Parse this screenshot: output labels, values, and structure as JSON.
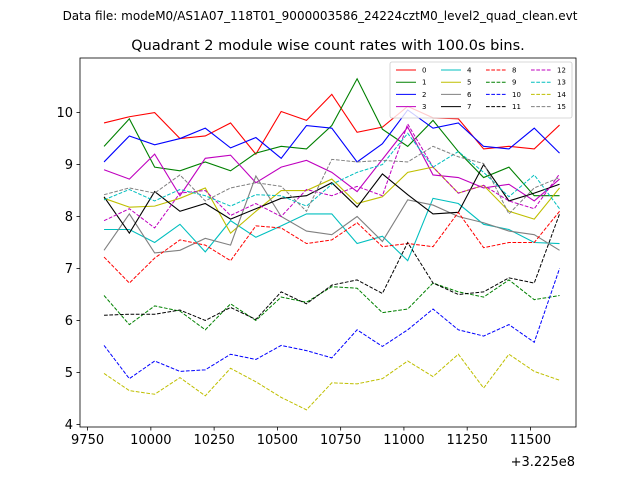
{
  "header": {
    "data_file": "Data file: modeM0/AS1A07_118T01_9000003586_24224cztM0_level2_quad_clean.evt"
  },
  "chart_data": {
    "type": "line",
    "title": "Quadrant 2 module wise count rates with 100.0s bins.",
    "xlabel": "",
    "ylabel": "",
    "x_offset_label": "+3.225e8",
    "xlim": [
      9720,
      11680
    ],
    "ylim": [
      3.95,
      11.05
    ],
    "xticks": [
      9750,
      10000,
      10250,
      10500,
      10750,
      11000,
      11250,
      11500
    ],
    "yticks": [
      4,
      5,
      6,
      7,
      8,
      9,
      10
    ],
    "grid": false,
    "legend_position": "top-right",
    "x": [
      9815,
      9915,
      10015,
      10115,
      10215,
      10315,
      10415,
      10515,
      10615,
      10715,
      10815,
      10915,
      11015,
      11115,
      11215,
      11315,
      11415,
      11515,
      11615
    ],
    "series": [
      {
        "name": "0",
        "color": "#ff0000",
        "dash": "solid",
        "values": [
          9.8,
          9.92,
          10.0,
          9.5,
          9.55,
          9.8,
          9.2,
          10.02,
          9.85,
          10.35,
          9.62,
          9.72,
          10.12,
          9.9,
          9.88,
          9.3,
          9.35,
          9.3,
          9.76
        ]
      },
      {
        "name": "1",
        "color": "#008000",
        "dash": "solid",
        "values": [
          9.35,
          9.88,
          8.95,
          8.88,
          9.05,
          8.88,
          9.22,
          9.35,
          9.3,
          9.75,
          10.65,
          9.68,
          9.35,
          9.85,
          9.25,
          8.75,
          8.95,
          8.4,
          8.4
        ]
      },
      {
        "name": "2",
        "color": "#0000ff",
        "dash": "solid",
        "values": [
          9.05,
          9.55,
          9.38,
          9.5,
          9.7,
          9.32,
          9.52,
          9.12,
          9.75,
          9.7,
          9.05,
          9.4,
          10.05,
          9.7,
          9.8,
          9.35,
          9.3,
          9.7,
          9.22
        ]
      },
      {
        "name": "3",
        "color": "#bf00bf",
        "dash": "solid",
        "values": [
          8.9,
          8.72,
          9.2,
          8.4,
          9.12,
          9.18,
          8.65,
          8.95,
          9.08,
          8.85,
          8.48,
          9.1,
          9.72,
          8.8,
          8.75,
          8.55,
          8.62,
          8.3,
          8.72
        ]
      },
      {
        "name": "4",
        "color": "#00bfbf",
        "dash": "solid",
        "values": [
          7.75,
          7.75,
          7.5,
          7.85,
          7.32,
          7.92,
          7.6,
          7.82,
          8.05,
          8.05,
          7.48,
          7.62,
          7.15,
          8.35,
          8.25,
          7.85,
          7.75,
          7.5,
          7.48
        ]
      },
      {
        "name": "5",
        "color": "#bfbf00",
        "dash": "solid",
        "values": [
          8.35,
          8.18,
          8.2,
          8.35,
          8.55,
          7.68,
          8.1,
          8.5,
          8.5,
          8.72,
          8.25,
          8.38,
          8.85,
          8.95,
          8.45,
          8.6,
          8.1,
          7.95,
          8.55
        ]
      },
      {
        "name": "6",
        "color": "#808080",
        "dash": "solid",
        "values": [
          7.35,
          8.05,
          7.3,
          7.35,
          7.58,
          7.45,
          8.78,
          8.0,
          7.72,
          7.65,
          8.0,
          7.52,
          8.32,
          8.22,
          8.0,
          7.88,
          7.72,
          7.65,
          7.35
        ]
      },
      {
        "name": "7",
        "color": "#000000",
        "dash": "solid",
        "values": [
          8.38,
          7.68,
          8.48,
          8.1,
          8.25,
          7.95,
          8.15,
          8.35,
          8.4,
          8.65,
          8.18,
          8.82,
          8.42,
          8.05,
          8.08,
          9.0,
          8.3,
          8.45,
          8.62
        ]
      },
      {
        "name": "8",
        "color": "#ff0000",
        "dash": "dashed",
        "values": [
          7.22,
          6.72,
          7.2,
          7.55,
          7.45,
          7.15,
          7.82,
          7.78,
          7.48,
          7.55,
          7.88,
          7.42,
          7.48,
          7.42,
          8.08,
          7.4,
          7.5,
          7.5,
          8.1
        ]
      },
      {
        "name": "9",
        "color": "#008000",
        "dash": "dashed",
        "values": [
          6.48,
          5.92,
          6.28,
          6.18,
          5.82,
          6.32,
          6.0,
          6.45,
          6.35,
          6.65,
          6.62,
          6.15,
          6.22,
          6.72,
          6.55,
          6.45,
          6.78,
          6.4,
          6.48
        ]
      },
      {
        "name": "10",
        "color": "#0000ff",
        "dash": "dashed",
        "values": [
          5.52,
          4.88,
          5.22,
          5.02,
          5.05,
          5.35,
          5.25,
          5.52,
          5.42,
          5.28,
          5.82,
          5.5,
          5.82,
          6.22,
          5.82,
          5.7,
          5.92,
          5.58,
          7.0
        ]
      },
      {
        "name": "11",
        "color": "#000000",
        "dash": "dashed",
        "values": [
          6.1,
          6.12,
          6.12,
          6.2,
          6.0,
          6.25,
          6.02,
          6.55,
          6.32,
          6.68,
          6.78,
          6.52,
          7.5,
          6.72,
          6.5,
          6.55,
          6.82,
          6.72,
          8.05
        ]
      },
      {
        "name": "12",
        "color": "#bf00bf",
        "dash": "dashed",
        "values": [
          7.92,
          8.15,
          7.78,
          8.45,
          8.5,
          8.02,
          8.25,
          8.0,
          8.52,
          8.4,
          8.58,
          8.4,
          9.78,
          8.95,
          8.45,
          8.6,
          8.3,
          8.15,
          8.82
        ]
      },
      {
        "name": "13",
        "color": "#00bfbf",
        "dash": "dashed",
        "values": [
          8.32,
          8.52,
          8.3,
          8.52,
          8.4,
          8.2,
          8.42,
          8.4,
          8.2,
          8.62,
          8.85,
          9.0,
          9.6,
          8.95,
          9.25,
          8.85,
          8.38,
          8.8,
          8.15
        ]
      },
      {
        "name": "14",
        "color": "#bfbf00",
        "dash": "dashed",
        "values": [
          4.98,
          4.65,
          4.58,
          4.9,
          4.55,
          5.08,
          4.82,
          4.52,
          4.28,
          4.8,
          4.78,
          4.88,
          5.22,
          4.92,
          5.35,
          4.7,
          5.35,
          5.02,
          4.85
        ]
      },
      {
        "name": "15",
        "color": "#808080",
        "dash": "dashed",
        "values": [
          8.42,
          8.55,
          8.45,
          8.8,
          8.3,
          8.55,
          8.65,
          8.58,
          8.1,
          9.1,
          9.05,
          9.08,
          9.05,
          9.35,
          9.15,
          9.02,
          8.05,
          8.55,
          8.75
        ]
      }
    ]
  }
}
